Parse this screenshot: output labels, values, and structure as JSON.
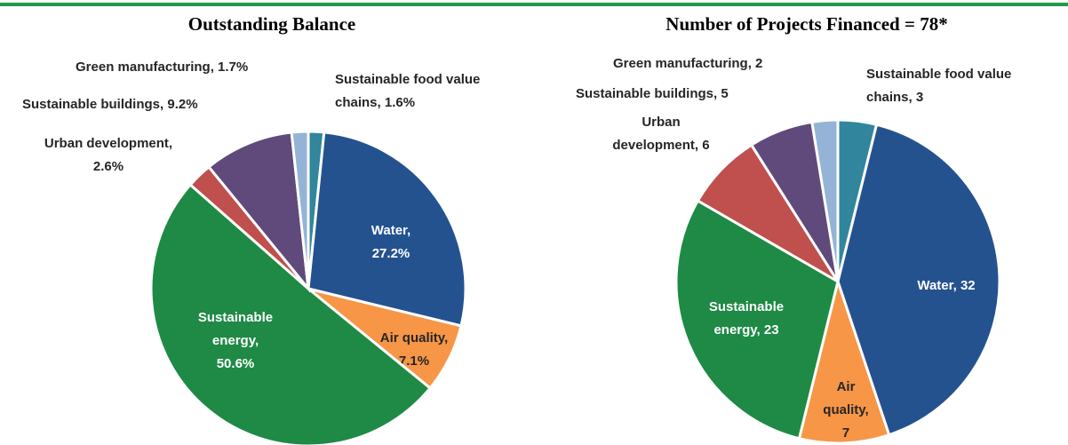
{
  "chart_data": [
    {
      "type": "pie",
      "title": "Outstanding Balance",
      "values": [
        1.6,
        27.2,
        7.1,
        50.6,
        2.6,
        9.2,
        1.7
      ],
      "value_labels": [
        [
          "Sustainable food value",
          "chains, 1.6%"
        ],
        [
          "Water,",
          "27.2%"
        ],
        [
          "Air quality,",
          "7.1%"
        ],
        [
          "Sustainable",
          "energy,",
          "50.6%"
        ],
        [
          "Urban development,",
          "2.6%"
        ],
        [
          "Sustainable buildings, 9.2%"
        ],
        [
          "Green manufacturing, 1.7%"
        ]
      ],
      "colors": [
        "#31859c",
        "#24528f",
        "#f79646",
        "#1e8a45",
        "#c0504d",
        "#604a7b",
        "#95b3d7"
      ]
    },
    {
      "type": "pie",
      "title": "Number of Projects Financed = 78*",
      "values": [
        3,
        32,
        7,
        23,
        6,
        5,
        2
      ],
      "value_labels": [
        [
          "Sustainable food value",
          "chains, 3"
        ],
        [
          "Water, 32"
        ],
        [
          "Air",
          "quality,",
          "7"
        ],
        [
          "Sustainable",
          "energy, 23"
        ],
        [
          "Urban",
          "development, 6"
        ],
        [
          "Sustainable buildings, 5"
        ],
        [
          "Green manufacturing, 2"
        ]
      ],
      "colors": [
        "#31859c",
        "#24528f",
        "#f79646",
        "#1e8a45",
        "#c0504d",
        "#604a7b",
        "#95b3d7"
      ]
    }
  ]
}
